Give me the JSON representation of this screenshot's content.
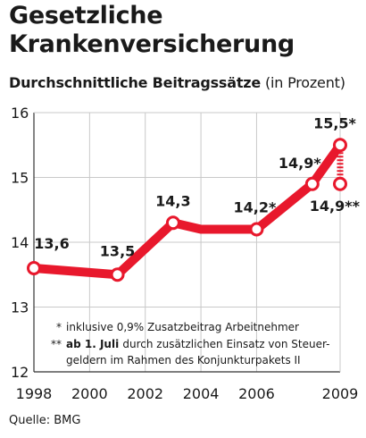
{
  "header": {
    "title_line1": "Gesetzliche",
    "title_line2": "Krankenversicherung",
    "subtitle_bold": "Durchschnittliche Beitragssätze",
    "subtitle_unit": "(in Prozent)"
  },
  "chart_data": {
    "type": "line",
    "x": [
      1998,
      2001,
      2003,
      2004,
      2006,
      2008,
      2009
    ],
    "series": [
      {
        "values": [
          13.6,
          13.5,
          14.3,
          14.2,
          14.2,
          14.9,
          15.5
        ]
      }
    ],
    "point_labels": [
      {
        "x": 1998,
        "y": 13.6,
        "text": "13,6"
      },
      {
        "x": 2001,
        "y": 13.5,
        "text": "13,5"
      },
      {
        "x": 2003,
        "y": 14.3,
        "text": "14,3"
      },
      {
        "x": 2006,
        "y": 14.2,
        "text": "14,2*"
      },
      {
        "x": 2008,
        "y": 14.9,
        "text": "14,9*"
      },
      {
        "x": 2009,
        "y": 15.5,
        "text": "15,5*"
      }
    ],
    "extra_point": {
      "x": 2009,
      "y": 14.9,
      "text": "14,9**"
    },
    "x_ticks": [
      1998,
      2000,
      2002,
      2004,
      2006,
      2009
    ],
    "x_tick_labels": [
      "1998",
      "2000",
      "2002",
      "2004",
      "2006",
      "2009"
    ],
    "y_ticks": [
      12,
      13,
      14,
      15,
      16
    ],
    "y_tick_labels": [
      "12",
      "13",
      "14",
      "15",
      "16"
    ],
    "xlim": [
      1998,
      2009
    ],
    "ylim": [
      12,
      16
    ],
    "grid": true,
    "line_color": "#e8182c",
    "marker_stroke": "#e8182c",
    "marker_fill": "#ffffff",
    "notes": [
      {
        "marker": "*",
        "bold": "",
        "text": "inklusive 0,9% Zusatzbeitrag Arbeitnehmer"
      },
      {
        "marker": "**",
        "bold": "ab 1. Juli",
        "text": "durch zusätzlichen Einsatz von Steuer-",
        "text2": "geldern im Rahmen des Konjunkturpakets II"
      }
    ]
  },
  "footer": {
    "source": "Quelle: BMG"
  }
}
